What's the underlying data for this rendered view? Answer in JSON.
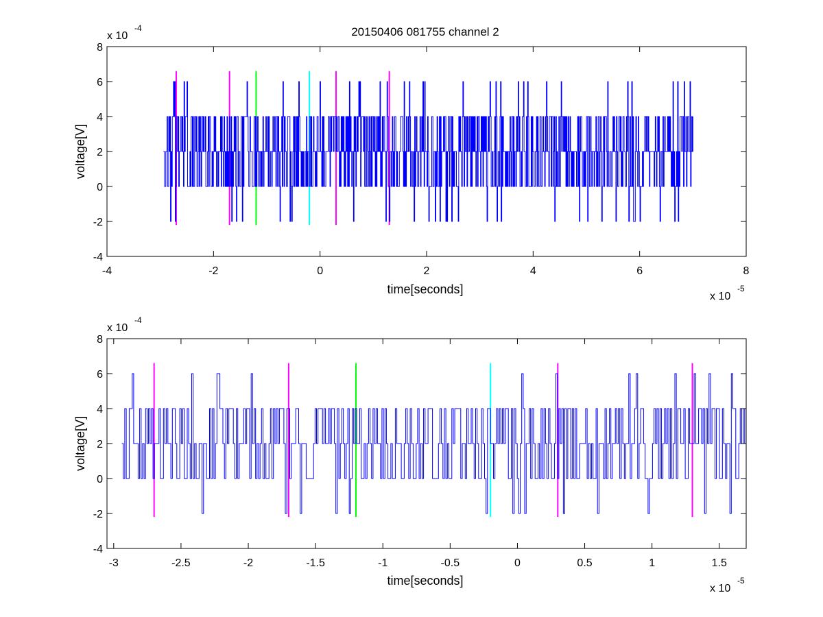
{
  "figure_title": "20150406 081755 channel 2",
  "colors": {
    "signal": "#0000ff",
    "magenta": "#ff00ff",
    "green": "#00ff00",
    "cyan": "#00ffff",
    "axes": "#000000",
    "background": "#ffffff"
  },
  "chart_data": [
    {
      "type": "line",
      "xlabel": "time[seconds]",
      "ylabel": "voltage[V]",
      "x_exponent_label": "x 10",
      "x_exponent": "-5",
      "y_exponent_label": "x 10",
      "y_exponent": "-4",
      "xlim": [
        -4,
        8
      ],
      "ylim": [
        -4,
        8
      ],
      "x_unit_note": "values scaled by 1e-5 s",
      "y_unit_note": "values scaled by 1e-4 V",
      "xticks": [
        -4,
        -2,
        0,
        2,
        4,
        6,
        8
      ],
      "xtick_labels": [
        "-4",
        "-2",
        "0",
        "2",
        "4",
        "6",
        "8"
      ],
      "yticks": [
        -4,
        -2,
        0,
        2,
        4,
        6,
        8
      ],
      "ytick_labels": [
        "-4",
        "-2",
        "0",
        "2",
        "4",
        "6",
        "8"
      ],
      "grid": false,
      "series": [
        {
          "color": "#0000ff",
          "x_start": -2.94,
          "x_end": 7.0,
          "levels": [
            -2,
            0,
            2,
            4,
            6
          ],
          "description": "noisy quantized voltage trace; dominant levels 0 to 4, occasional spikes to 6 and -2"
        }
      ],
      "markers": [
        {
          "x": -2.7,
          "color": "#ff00ff",
          "ymin": -2.2,
          "ymax": 6.6
        },
        {
          "x": -1.7,
          "color": "#ff00ff",
          "ymin": -2.2,
          "ymax": 6.6
        },
        {
          "x": -1.2,
          "color": "#00ff00",
          "ymin": -2.2,
          "ymax": 6.6
        },
        {
          "x": -0.2,
          "color": "#00ffff",
          "ymin": -2.2,
          "ymax": 6.6
        },
        {
          "x": 0.3,
          "color": "#ff00ff",
          "ymin": -2.2,
          "ymax": 6.6
        },
        {
          "x": 1.3,
          "color": "#ff00ff",
          "ymin": -2.2,
          "ymax": 6.6
        }
      ]
    },
    {
      "type": "line",
      "xlabel": "time[seconds]",
      "ylabel": "voltage[V]",
      "x_exponent_label": "x 10",
      "x_exponent": "-5",
      "y_exponent_label": "x 10",
      "y_exponent": "-4",
      "xlim": [
        -3.05,
        1.7
      ],
      "ylim": [
        -4,
        8
      ],
      "x_unit_note": "values scaled by 1e-5 s",
      "y_unit_note": "values scaled by 1e-4 V",
      "xticks": [
        -3,
        -2.5,
        -2,
        -1.5,
        -1,
        -0.5,
        0,
        0.5,
        1,
        1.5
      ],
      "xtick_labels": [
        "-3",
        "-2.5",
        "-2",
        "-1.5",
        "-1",
        "-0.5",
        "0",
        "0.5",
        "1",
        "1.5"
      ],
      "yticks": [
        -4,
        -2,
        0,
        2,
        4,
        6,
        8
      ],
      "ytick_labels": [
        "-4",
        "-2",
        "0",
        "2",
        "4",
        "6",
        "8"
      ],
      "grid": false,
      "series": [
        {
          "color": "#0000ff",
          "x_start": -2.94,
          "x_end": 1.7,
          "levels": [
            -2,
            0,
            2,
            4,
            6
          ],
          "description": "zoomed view of the same quantized voltage trace"
        }
      ],
      "markers": [
        {
          "x": -2.7,
          "color": "#ff00ff",
          "ymin": -2.2,
          "ymax": 6.6
        },
        {
          "x": -1.7,
          "color": "#ff00ff",
          "ymin": -2.2,
          "ymax": 6.6
        },
        {
          "x": -1.2,
          "color": "#00ff00",
          "ymin": -2.2,
          "ymax": 6.6
        },
        {
          "x": -0.2,
          "color": "#00ffff",
          "ymin": -2.2,
          "ymax": 6.6
        },
        {
          "x": 0.3,
          "color": "#ff00ff",
          "ymin": -2.2,
          "ymax": 6.6
        },
        {
          "x": 1.3,
          "color": "#ff00ff",
          "ymin": -2.2,
          "ymax": 6.6
        }
      ]
    }
  ]
}
